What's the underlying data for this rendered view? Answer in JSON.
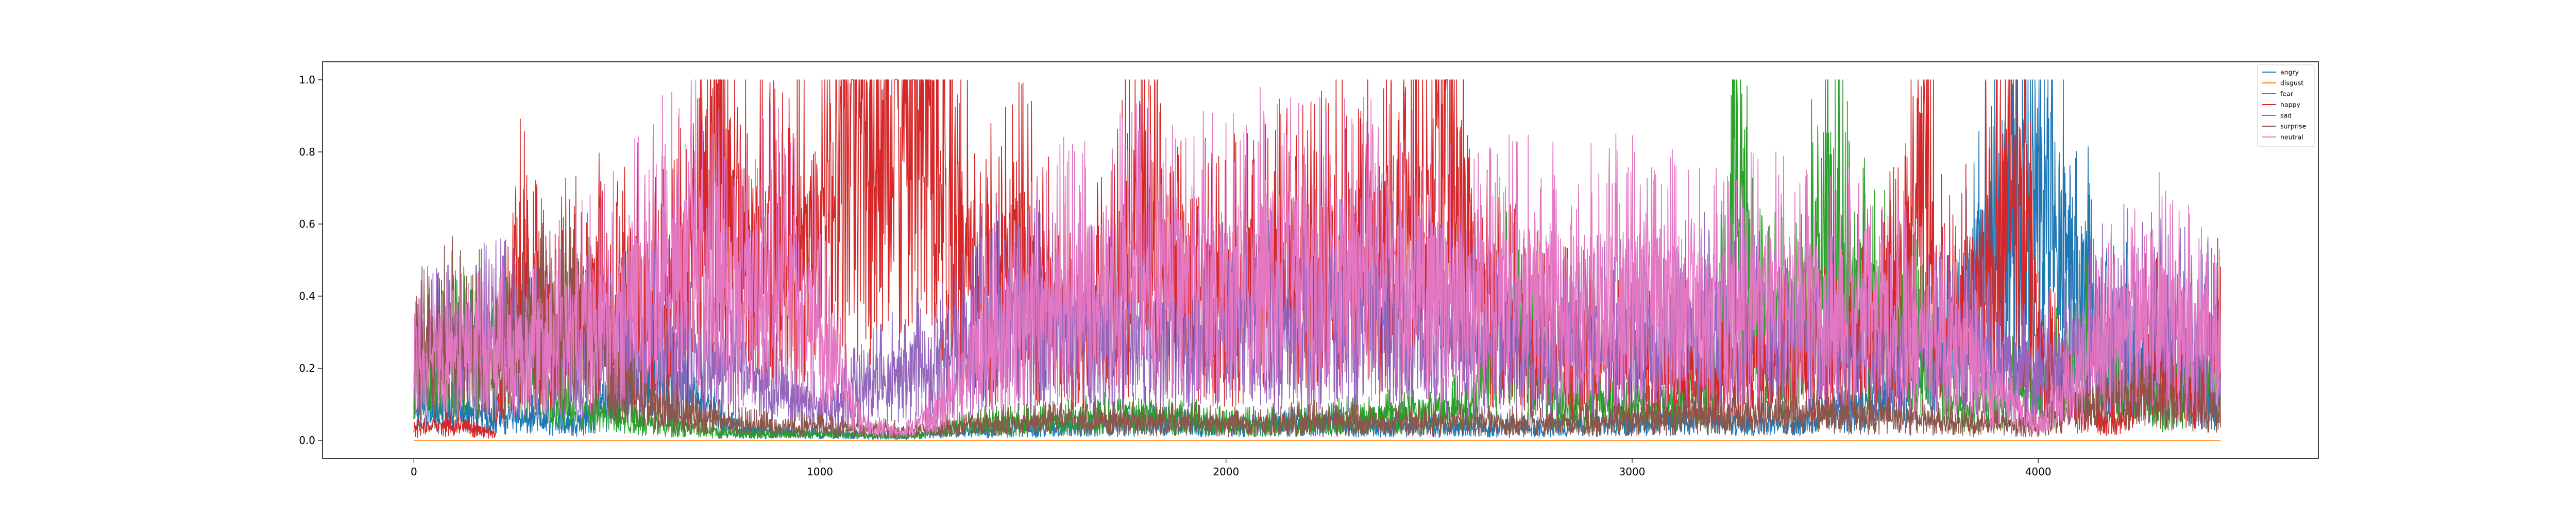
{
  "chart_data": {
    "type": "line",
    "title": "",
    "xlabel": "",
    "ylabel": "",
    "xlim": [
      -225,
      4690
    ],
    "ylim": [
      -0.05,
      1.05
    ],
    "x_ticks": [
      0,
      1000,
      2000,
      3000,
      4000
    ],
    "x_tick_labels": [
      "0",
      "1000",
      "2000",
      "3000",
      "4000"
    ],
    "y_ticks": [
      0.0,
      0.2,
      0.4,
      0.6,
      0.8,
      1.0
    ],
    "y_tick_labels": [
      "0.0",
      "0.2",
      "0.4",
      "0.6",
      "0.8",
      "1.0"
    ],
    "n_points": 4450,
    "grid": false,
    "legend_position": "top-right",
    "series": [
      {
        "name": "angry",
        "color": "#1f77b4",
        "x": [
          0,
          200,
          400,
          600,
          800,
          1000,
          1200,
          1400,
          1600,
          1800,
          2000,
          2200,
          2400,
          2600,
          2800,
          3000,
          3200,
          3400,
          3600,
          3700,
          3800,
          3850,
          3900,
          3950,
          4000,
          4050,
          4100,
          4200,
          4300,
          4449
        ],
        "y": [
          0.1,
          0.08,
          0.05,
          0.2,
          0.03,
          0.02,
          0.01,
          0.03,
          0.04,
          0.05,
          0.05,
          0.05,
          0.04,
          0.04,
          0.04,
          0.06,
          0.06,
          0.05,
          0.12,
          0.18,
          0.3,
          0.5,
          0.68,
          0.7,
          0.72,
          0.62,
          0.48,
          0.32,
          0.2,
          0.12
        ]
      },
      {
        "name": "disgust",
        "color": "#ff7f0e",
        "x": [
          0,
          1000,
          2000,
          3000,
          4000,
          4449
        ],
        "y": [
          0.0,
          0.0,
          0.0,
          0.0,
          0.0,
          0.0
        ]
      },
      {
        "name": "fear",
        "color": "#2ca02c",
        "x": [
          0,
          200,
          400,
          600,
          800,
          1000,
          1200,
          1400,
          1600,
          1800,
          2000,
          2200,
          2400,
          2600,
          2700,
          2800,
          3000,
          3200,
          3250,
          3300,
          3400,
          3480,
          3550,
          3600,
          3700,
          3800,
          3900,
          3950,
          4000,
          4100,
          4200,
          4300,
          4400,
          4449
        ],
        "y": [
          0.2,
          0.3,
          0.1,
          0.05,
          0.02,
          0.02,
          0.01,
          0.05,
          0.06,
          0.08,
          0.05,
          0.05,
          0.08,
          0.1,
          0.38,
          0.12,
          0.1,
          0.15,
          0.8,
          0.4,
          0.3,
          0.7,
          0.45,
          0.4,
          0.3,
          0.12,
          0.1,
          0.18,
          0.12,
          0.3,
          0.2,
          0.1,
          0.2,
          0.15
        ]
      },
      {
        "name": "happy",
        "color": "#d62728",
        "x": [
          0,
          100,
          200,
          250,
          300,
          350,
          400,
          500,
          600,
          700,
          750,
          800,
          900,
          1000,
          1050,
          1100,
          1150,
          1200,
          1250,
          1300,
          1400,
          1500,
          1600,
          1700,
          1800,
          1900,
          2000,
          2100,
          2200,
          2300,
          2400,
          2500,
          2550,
          2600,
          2700,
          2800,
          3000,
          3200,
          3400,
          3600,
          3700,
          3720,
          3750,
          3800,
          3900,
          3950,
          4000,
          4100,
          4200,
          4300,
          4400,
          4449
        ],
        "y": [
          0.03,
          0.05,
          0.02,
          0.55,
          0.4,
          0.3,
          0.35,
          0.5,
          0.4,
          0.55,
          0.95,
          0.6,
          0.55,
          0.6,
          0.92,
          0.97,
          0.99,
          0.98,
          0.96,
          0.8,
          0.45,
          0.55,
          0.35,
          0.4,
          0.7,
          0.45,
          0.45,
          0.5,
          0.5,
          0.55,
          0.6,
          0.7,
          0.95,
          0.55,
          0.35,
          0.3,
          0.25,
          0.2,
          0.25,
          0.3,
          0.6,
          0.9,
          0.4,
          0.35,
          0.6,
          0.75,
          0.3,
          0.1,
          0.05,
          0.3,
          0.1,
          0.35
        ]
      },
      {
        "name": "sad",
        "color": "#9467bd",
        "x": [
          0,
          200,
          400,
          600,
          800,
          1000,
          1200,
          1400,
          1600,
          1800,
          2000,
          2200,
          2400,
          2600,
          2800,
          3000,
          3200,
          3400,
          3600,
          3800,
          4000,
          4200,
          4449
        ],
        "y": [
          0.25,
          0.3,
          0.25,
          0.3,
          0.2,
          0.1,
          0.2,
          0.35,
          0.35,
          0.3,
          0.35,
          0.35,
          0.4,
          0.3,
          0.3,
          0.3,
          0.35,
          0.35,
          0.25,
          0.3,
          0.2,
          0.35,
          0.3
        ]
      },
      {
        "name": "surprise",
        "color": "#8c564b",
        "x": [
          0,
          100,
          200,
          300,
          400,
          500,
          600,
          800,
          1000,
          1200,
          1400,
          1600,
          1800,
          2000,
          2200,
          2400,
          2600,
          2800,
          3000,
          3200,
          3400,
          3600,
          3800,
          4000,
          4200,
          4449
        ],
        "y": [
          0.25,
          0.3,
          0.2,
          0.35,
          0.4,
          0.2,
          0.1,
          0.05,
          0.04,
          0.03,
          0.05,
          0.06,
          0.06,
          0.05,
          0.06,
          0.05,
          0.06,
          0.05,
          0.06,
          0.08,
          0.08,
          0.08,
          0.05,
          0.05,
          0.15,
          0.1
        ]
      },
      {
        "name": "neutral",
        "color": "#e377c2",
        "x": [
          0,
          100,
          200,
          300,
          400,
          500,
          600,
          700,
          800,
          900,
          1000,
          1100,
          1200,
          1300,
          1400,
          1600,
          1800,
          2000,
          2200,
          2400,
          2600,
          2800,
          3000,
          3200,
          3400,
          3600,
          3800,
          3900,
          4000,
          4100,
          4200,
          4300,
          4449
        ],
        "y": [
          0.2,
          0.3,
          0.25,
          0.3,
          0.35,
          0.4,
          0.5,
          0.55,
          0.45,
          0.5,
          0.35,
          0.05,
          0.02,
          0.1,
          0.3,
          0.45,
          0.5,
          0.5,
          0.55,
          0.5,
          0.45,
          0.45,
          0.45,
          0.4,
          0.45,
          0.4,
          0.3,
          0.15,
          0.05,
          0.2,
          0.35,
          0.4,
          0.3
        ]
      }
    ]
  }
}
